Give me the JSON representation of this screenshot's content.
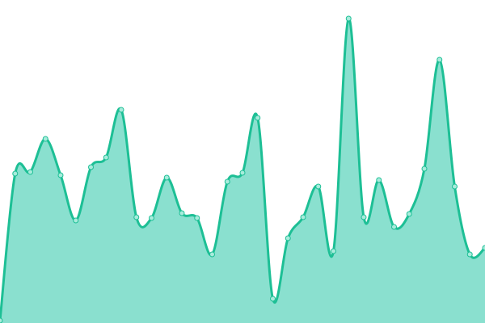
{
  "chart_data": {
    "type": "area",
    "title": "",
    "xlabel": "",
    "ylabel": "",
    "x": [
      0,
      1,
      2,
      3,
      4,
      5,
      6,
      7,
      8,
      9,
      10,
      11,
      12,
      13,
      14,
      15,
      16,
      17,
      18,
      19,
      20,
      21,
      22,
      23,
      24,
      25,
      26,
      27,
      28,
      29,
      30,
      31,
      32
    ],
    "values": [
      3,
      185,
      187,
      228,
      183,
      127,
      193,
      205,
      264,
      131,
      130,
      180,
      136,
      130,
      85,
      175,
      186,
      254,
      30,
      105,
      131,
      169,
      89,
      377,
      131,
      177,
      119,
      135,
      191,
      326,
      169,
      85,
      93
    ],
    "xlim": [
      0,
      32
    ],
    "ylim": [
      0,
      400
    ],
    "grid": false,
    "axes_visible": false,
    "curve": "smooth",
    "colors": {
      "line": "#1dbf95",
      "fill": "#8ae0cf",
      "point_fill": "#a8ecdc",
      "point_stroke": "#1dbf95"
    }
  }
}
